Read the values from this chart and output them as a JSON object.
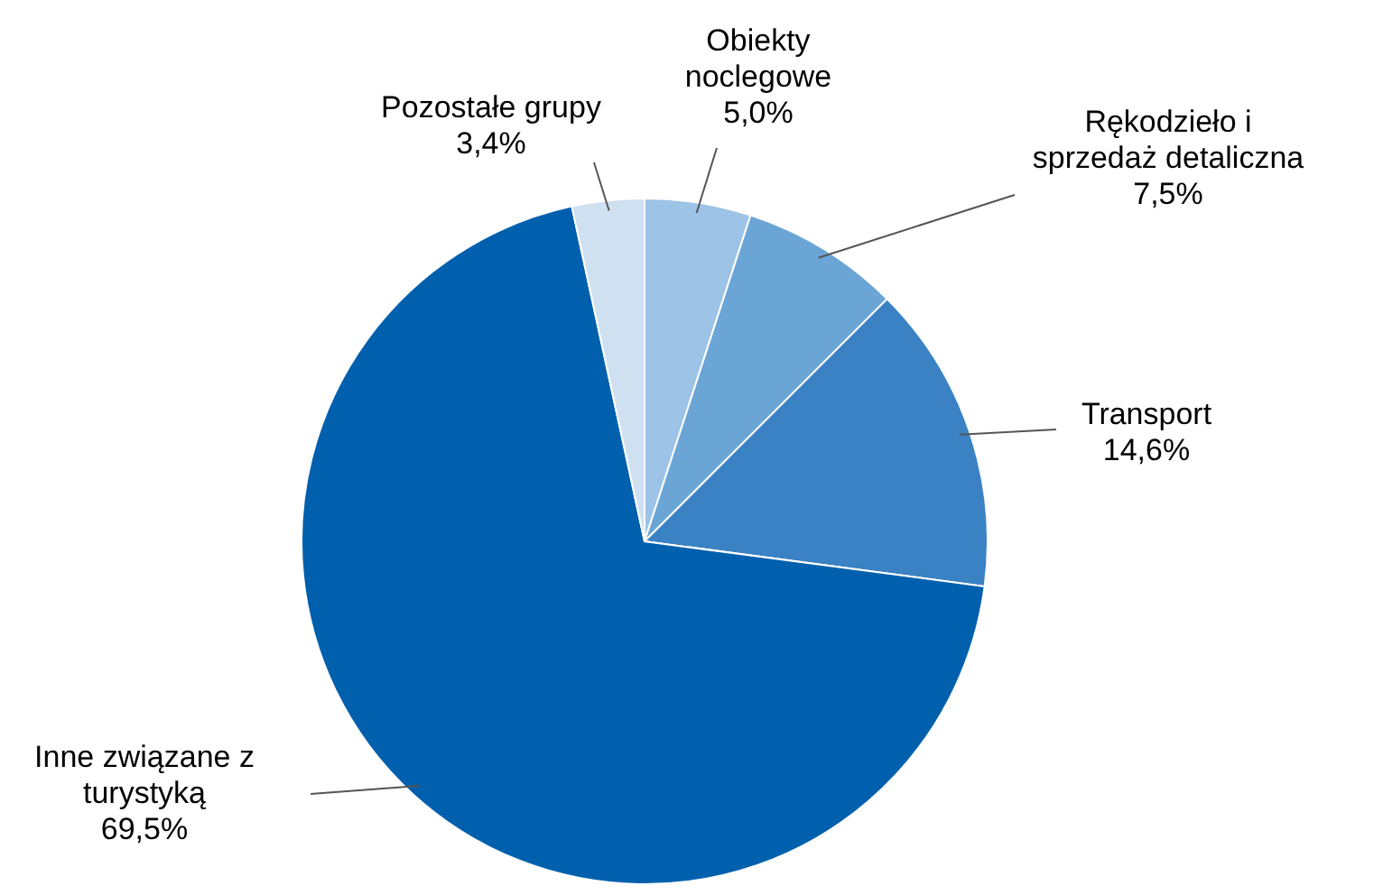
{
  "chart_data": {
    "type": "pie",
    "categories": [
      "Obiekty noclegowe",
      "Rękodzieło i sprzedaż detaliczna",
      "Transport",
      "Inne związane z turystyką",
      "Pozostałe grupy"
    ],
    "values": [
      5.0,
      7.5,
      14.6,
      69.5,
      3.4
    ],
    "value_labels": [
      "5,0%",
      "7,5%",
      "14,6%",
      "69,5%",
      "3,4%"
    ],
    "colors": [
      "#9dc3e6",
      "#6aa5d6",
      "#3a82c4",
      "#0060ad",
      "#cfe0f1"
    ]
  }
}
